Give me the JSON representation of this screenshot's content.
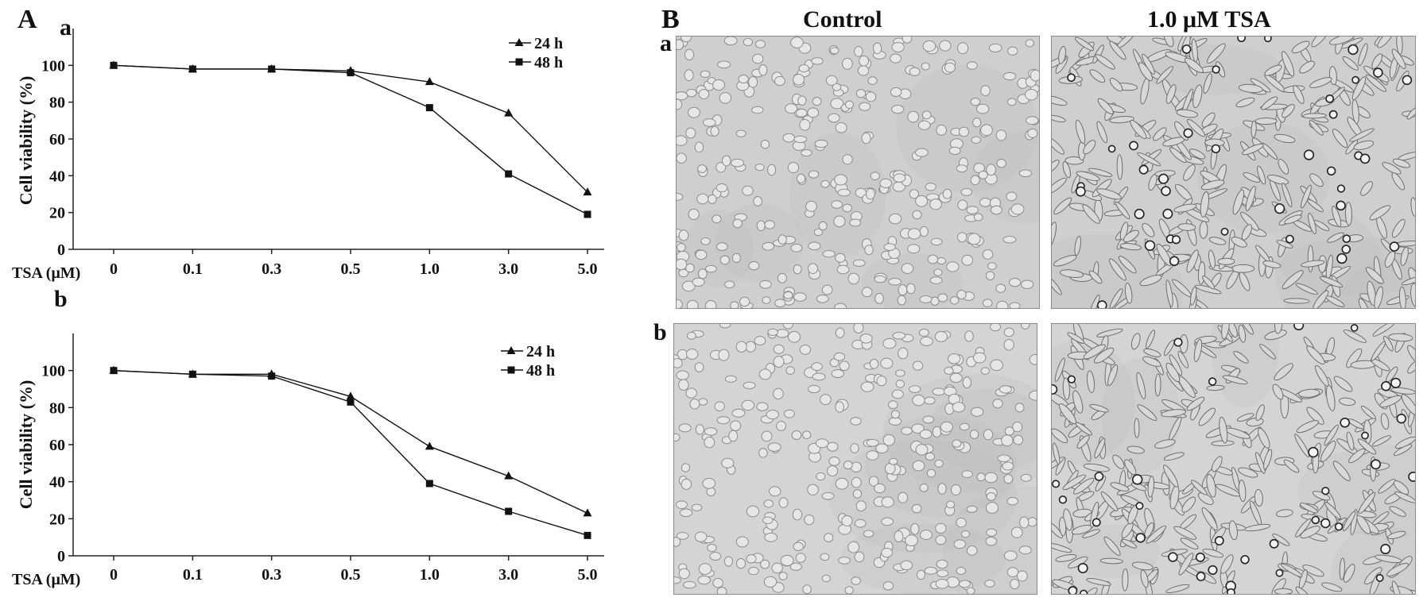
{
  "panel_A": {
    "label": "A"
  },
  "panel_B": {
    "label": "B"
  },
  "columns": {
    "left": "Control",
    "right": "1.0 μM TSA"
  },
  "image_rows": [
    {
      "label": "a",
      "tone": "#cfcfcf"
    },
    {
      "label": "b",
      "tone": "#d4d4d4"
    }
  ],
  "chart_data": [
    {
      "type": "line",
      "panel": "a",
      "categories": [
        "0",
        "0.1",
        "0.3",
        "0.5",
        "1.0",
        "3.0",
        "5.0"
      ],
      "xlabel": "TSA (μM)",
      "ylabel": "Cell viability (%)",
      "ylim": [
        0,
        120
      ],
      "yticks": [
        0,
        20,
        40,
        60,
        80,
        100
      ],
      "legend": "top-right",
      "series": [
        {
          "name": "24 h",
          "marker": "triangle",
          "values": [
            100,
            98,
            98,
            97,
            91,
            74,
            31
          ]
        },
        {
          "name": "48 h",
          "marker": "square",
          "values": [
            100,
            98,
            98,
            96,
            77,
            41,
            19
          ]
        }
      ]
    },
    {
      "type": "line",
      "panel": "b",
      "categories": [
        "0",
        "0.1",
        "0.3",
        "0.5",
        "1.0",
        "3.0",
        "5.0"
      ],
      "xlabel": "TSA (μM)",
      "ylabel": "Cell viability (%)",
      "ylim": [
        0,
        120
      ],
      "yticks": [
        0,
        20,
        40,
        60,
        80,
        100
      ],
      "legend": "top-right",
      "series": [
        {
          "name": "24 h",
          "marker": "triangle",
          "values": [
            100,
            98,
            98,
            86,
            59,
            43,
            23
          ]
        },
        {
          "name": "48 h",
          "marker": "square",
          "values": [
            100,
            98,
            97,
            83,
            39,
            24,
            11
          ]
        }
      ]
    }
  ]
}
